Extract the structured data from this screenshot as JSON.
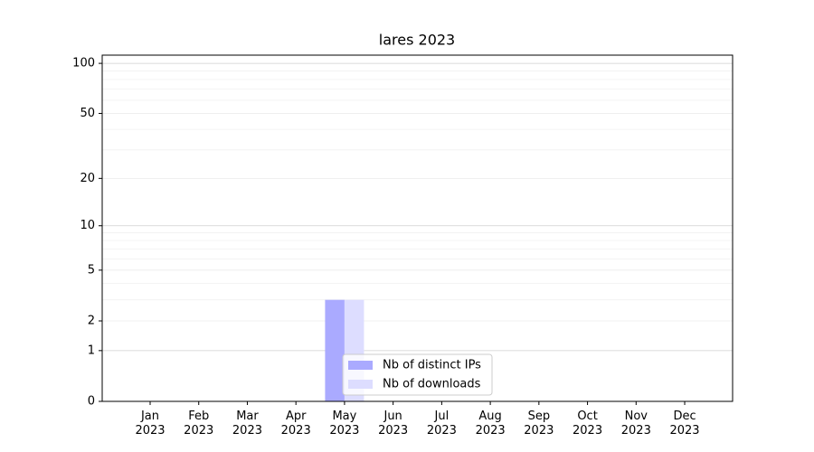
{
  "chart_data": {
    "type": "bar",
    "title": "lares 2023",
    "categories": [
      "Jan 2023",
      "Feb 2023",
      "Mar 2023",
      "Apr 2023",
      "May 2023",
      "Jun 2023",
      "Jul 2023",
      "Aug 2023",
      "Sep 2023",
      "Oct 2023",
      "Nov 2023",
      "Dec 2023"
    ],
    "series": [
      {
        "name": "Nb of distinct IPs",
        "color": "#aaaaff",
        "values": [
          0,
          0,
          0,
          0,
          3,
          0,
          0,
          0,
          0,
          0,
          0,
          0
        ]
      },
      {
        "name": "Nb of downloads",
        "color": "#ddddff",
        "values": [
          0,
          0,
          0,
          0,
          3,
          0,
          0,
          0,
          0,
          0,
          0,
          0
        ]
      }
    ],
    "yscale": "log1p",
    "ylim": [
      0,
      112
    ],
    "yticks": [
      0,
      1,
      2,
      5,
      10,
      20,
      50,
      100
    ],
    "yminorticks": [
      3,
      4,
      6,
      7,
      8,
      9,
      30,
      40,
      60,
      70,
      80,
      90
    ],
    "grid": true,
    "legend": "lower center"
  }
}
